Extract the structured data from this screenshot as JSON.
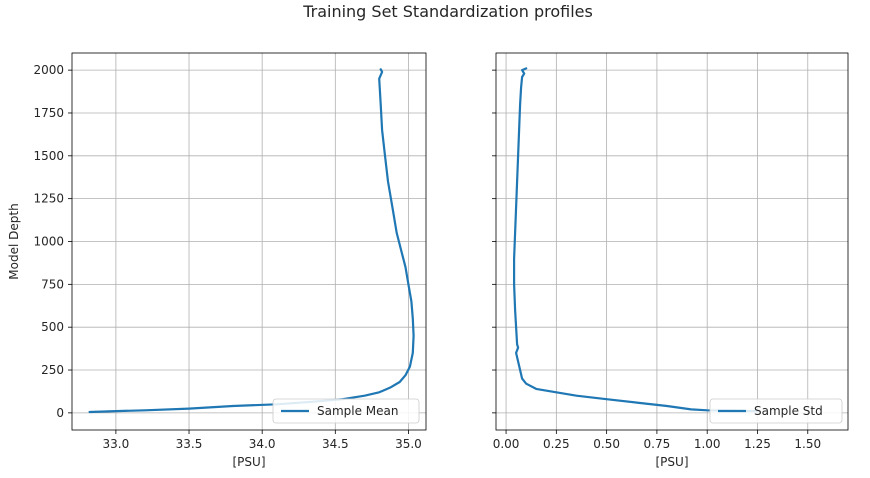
{
  "title": "Training Set Standardization profiles",
  "colors": {
    "line": "#1f77b4",
    "grid": "#b0b0b0",
    "axes": "#000000"
  },
  "chart_data": [
    {
      "type": "line",
      "xlabel": "[PSU]",
      "ylabel": "Model Depth",
      "xlim": [
        32.7,
        35.12
      ],
      "ylim": [
        -100,
        2100
      ],
      "xticks": [
        33.0,
        33.5,
        34.0,
        34.5,
        35.0
      ],
      "xtick_labels": [
        "33.0",
        "33.5",
        "34.0",
        "34.5",
        "35.0"
      ],
      "yticks": [
        0,
        250,
        500,
        750,
        1000,
        1250,
        1500,
        1750,
        2000
      ],
      "ytick_labels": [
        "0",
        "250",
        "500",
        "750",
        "1000",
        "1250",
        "1500",
        "1750",
        "2000"
      ],
      "grid": true,
      "legend": "lower right",
      "series": [
        {
          "name": "Sample Mean",
          "x": [
            32.82,
            33.0,
            33.2,
            33.5,
            33.8,
            34.1,
            34.35,
            34.55,
            34.7,
            34.8,
            34.88,
            34.94,
            34.98,
            35.01,
            35.03,
            35.035,
            35.03,
            35.02,
            35.0,
            34.98,
            34.95,
            34.92,
            34.89,
            34.86,
            34.84,
            34.82,
            34.81,
            34.8,
            34.82,
            34.81
          ],
          "y": [
            5,
            10,
            15,
            25,
            40,
            50,
            65,
            80,
            100,
            120,
            150,
            180,
            220,
            270,
            350,
            450,
            550,
            650,
            750,
            850,
            950,
            1050,
            1200,
            1350,
            1500,
            1650,
            1800,
            1950,
            1990,
            2005
          ]
        },
        {
          "name": "Sample Std",
          "x": [
            1.25,
            1.0,
            0.92,
            0.8,
            0.65,
            0.5,
            0.35,
            0.25,
            0.15,
            0.1,
            0.08,
            0.07,
            0.06,
            0.05,
            0.06,
            0.055,
            0.05,
            0.045,
            0.04,
            0.04,
            0.045,
            0.05,
            0.055,
            0.06,
            0.065,
            0.07,
            0.075,
            0.08,
            0.09,
            0.08,
            0.1
          ],
          "y": [
            10,
            15,
            20,
            40,
            60,
            80,
            100,
            120,
            140,
            170,
            200,
            250,
            300,
            350,
            380,
            400,
            500,
            600,
            750,
            900,
            1050,
            1200,
            1350,
            1500,
            1650,
            1800,
            1900,
            1960,
            1980,
            2000,
            2010
          ]
        }
      ]
    },
    {
      "type": "line",
      "xlabel": "[PSU]",
      "xlim": [
        -0.05,
        1.7
      ],
      "xticks": [
        0.0,
        0.25,
        0.5,
        0.75,
        1.0,
        1.25,
        1.5
      ],
      "xtick_labels": [
        "0.00",
        "0.25",
        "0.50",
        "0.75",
        "1.00",
        "1.25",
        "1.50"
      ],
      "sharey": true
    }
  ]
}
